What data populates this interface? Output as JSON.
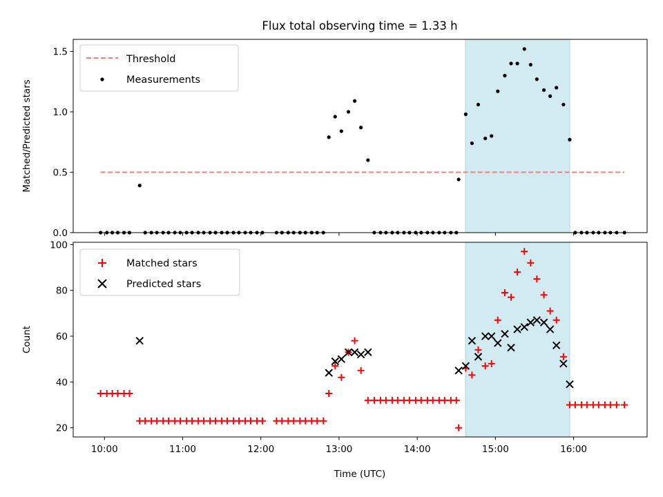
{
  "chart_data": {
    "title": "Flux total observing time = 1.33 h",
    "xlabel": "Time (UTC)",
    "x_ticks": [
      {
        "t": 10.0,
        "label": "10:00"
      },
      {
        "t": 11.0,
        "label": "11:00"
      },
      {
        "t": 12.0,
        "label": "12:00"
      },
      {
        "t": 13.0,
        "label": "13:00"
      },
      {
        "t": 14.0,
        "label": "14:00"
      },
      {
        "t": 15.0,
        "label": "15:00"
      },
      {
        "t": 16.0,
        "label": "16:00"
      }
    ],
    "xlim": [
      9.6,
      16.94
    ],
    "shaded_span": {
      "x_start": 14.617,
      "x_end": 15.95,
      "color": "#add8e6"
    },
    "panels": [
      {
        "id": "ratio",
        "type": "scatter",
        "ylabel": "Matched/Predicted stars",
        "ylim": [
          0,
          1.6
        ],
        "y_ticks": [
          0.0,
          0.5,
          1.0,
          1.5
        ],
        "y_tick_labels": [
          "0.0",
          "0.5",
          "1.0",
          "1.5"
        ],
        "legend_position": "top-left",
        "threshold": {
          "name": "Threshold",
          "value": 0.5,
          "x_start": 9.95,
          "x_end": 16.65,
          "color": "#f08080"
        },
        "series": [
          {
            "name": "Measurements",
            "marker": "dot",
            "color": "#000000",
            "points": [
              [
                9.95,
                0
              ],
              [
                10.03,
                0
              ],
              [
                10.1,
                0
              ],
              [
                10.17,
                0
              ],
              [
                10.25,
                0
              ],
              [
                10.32,
                0
              ],
              [
                10.45,
                0.39
              ],
              [
                10.52,
                0
              ],
              [
                10.6,
                0
              ],
              [
                10.67,
                0
              ],
              [
                10.75,
                0
              ],
              [
                10.82,
                0
              ],
              [
                10.9,
                0
              ],
              [
                10.97,
                0
              ],
              [
                11.05,
                0
              ],
              [
                11.12,
                0
              ],
              [
                11.2,
                0
              ],
              [
                11.27,
                0
              ],
              [
                11.35,
                0
              ],
              [
                11.42,
                0
              ],
              [
                11.5,
                0
              ],
              [
                11.57,
                0
              ],
              [
                11.65,
                0
              ],
              [
                11.72,
                0
              ],
              [
                11.8,
                0
              ],
              [
                11.87,
                0
              ],
              [
                11.95,
                0
              ],
              [
                12.02,
                0
              ],
              [
                12.2,
                0
              ],
              [
                12.27,
                0
              ],
              [
                12.35,
                0
              ],
              [
                12.42,
                0
              ],
              [
                12.5,
                0
              ],
              [
                12.57,
                0
              ],
              [
                12.65,
                0
              ],
              [
                12.72,
                0
              ],
              [
                12.8,
                0
              ],
              [
                12.87,
                0.79
              ],
              [
                12.95,
                0.96
              ],
              [
                13.03,
                0.84
              ],
              [
                13.12,
                1.0
              ],
              [
                13.2,
                1.09
              ],
              [
                13.28,
                0.87
              ],
              [
                13.37,
                0.6
              ],
              [
                13.45,
                0
              ],
              [
                13.53,
                0
              ],
              [
                13.6,
                0
              ],
              [
                13.68,
                0
              ],
              [
                13.75,
                0
              ],
              [
                13.83,
                0
              ],
              [
                13.9,
                0
              ],
              [
                13.98,
                0
              ],
              [
                14.05,
                0
              ],
              [
                14.13,
                0
              ],
              [
                14.2,
                0
              ],
              [
                14.28,
                0
              ],
              [
                14.35,
                0
              ],
              [
                14.43,
                0
              ],
              [
                14.5,
                0
              ],
              [
                14.53,
                0.44
              ],
              [
                14.62,
                0.98
              ],
              [
                14.7,
                0.74
              ],
              [
                14.78,
                1.06
              ],
              [
                14.87,
                0.78
              ],
              [
                14.95,
                0.8
              ],
              [
                15.03,
                1.17
              ],
              [
                15.12,
                1.3
              ],
              [
                15.2,
                1.4
              ],
              [
                15.28,
                1.4
              ],
              [
                15.37,
                1.52
              ],
              [
                15.45,
                1.39
              ],
              [
                15.53,
                1.27
              ],
              [
                15.62,
                1.18
              ],
              [
                15.7,
                1.13
              ],
              [
                15.78,
                1.2
              ],
              [
                15.87,
                1.06
              ],
              [
                15.95,
                0.77
              ],
              [
                16.02,
                0
              ],
              [
                16.1,
                0
              ],
              [
                16.17,
                0
              ],
              [
                16.25,
                0
              ],
              [
                16.32,
                0
              ],
              [
                16.4,
                0
              ],
              [
                16.47,
                0
              ],
              [
                16.55,
                0
              ],
              [
                16.65,
                0
              ]
            ]
          }
        ]
      },
      {
        "id": "counts",
        "type": "scatter",
        "ylabel": "Count",
        "ylim": [
          16,
          101
        ],
        "y_ticks": [
          20,
          40,
          60,
          80,
          100
        ],
        "y_tick_labels": [
          "20",
          "40",
          "60",
          "80",
          "100"
        ],
        "legend_position": "top-left",
        "series": [
          {
            "name": "Matched stars",
            "marker": "plus",
            "color": "#ff0000",
            "points": [
              [
                9.95,
                35
              ],
              [
                10.03,
                35
              ],
              [
                10.1,
                35
              ],
              [
                10.17,
                35
              ],
              [
                10.25,
                35
              ],
              [
                10.32,
                35
              ],
              [
                10.45,
                23
              ],
              [
                10.52,
                23
              ],
              [
                10.6,
                23
              ],
              [
                10.67,
                23
              ],
              [
                10.75,
                23
              ],
              [
                10.82,
                23
              ],
              [
                10.9,
                23
              ],
              [
                10.97,
                23
              ],
              [
                11.05,
                23
              ],
              [
                11.12,
                23
              ],
              [
                11.2,
                23
              ],
              [
                11.27,
                23
              ],
              [
                11.35,
                23
              ],
              [
                11.42,
                23
              ],
              [
                11.5,
                23
              ],
              [
                11.57,
                23
              ],
              [
                11.65,
                23
              ],
              [
                11.72,
                23
              ],
              [
                11.8,
                23
              ],
              [
                11.87,
                23
              ],
              [
                11.95,
                23
              ],
              [
                12.02,
                23
              ],
              [
                12.2,
                23
              ],
              [
                12.27,
                23
              ],
              [
                12.35,
                23
              ],
              [
                12.42,
                23
              ],
              [
                12.5,
                23
              ],
              [
                12.57,
                23
              ],
              [
                12.65,
                23
              ],
              [
                12.72,
                23
              ],
              [
                12.8,
                23
              ],
              [
                12.87,
                35
              ],
              [
                12.95,
                47
              ],
              [
                13.03,
                42
              ],
              [
                13.12,
                53
              ],
              [
                13.2,
                58
              ],
              [
                13.28,
                45
              ],
              [
                13.37,
                32
              ],
              [
                13.45,
                32
              ],
              [
                13.53,
                32
              ],
              [
                13.6,
                32
              ],
              [
                13.68,
                32
              ],
              [
                13.75,
                32
              ],
              [
                13.83,
                32
              ],
              [
                13.9,
                32
              ],
              [
                13.98,
                32
              ],
              [
                14.05,
                32
              ],
              [
                14.13,
                32
              ],
              [
                14.2,
                32
              ],
              [
                14.28,
                32
              ],
              [
                14.35,
                32
              ],
              [
                14.43,
                32
              ],
              [
                14.5,
                32
              ],
              [
                14.53,
                20
              ],
              [
                14.62,
                46
              ],
              [
                14.7,
                43
              ],
              [
                14.78,
                54
              ],
              [
                14.87,
                47
              ],
              [
                14.95,
                48
              ],
              [
                15.03,
                67
              ],
              [
                15.12,
                79
              ],
              [
                15.2,
                77
              ],
              [
                15.28,
                88
              ],
              [
                15.37,
                97
              ],
              [
                15.45,
                92
              ],
              [
                15.53,
                85
              ],
              [
                15.62,
                78
              ],
              [
                15.7,
                71
              ],
              [
                15.78,
                67
              ],
              [
                15.87,
                51
              ],
              [
                15.95,
                30
              ],
              [
                16.02,
                30
              ],
              [
                16.1,
                30
              ],
              [
                16.17,
                30
              ],
              [
                16.25,
                30
              ],
              [
                16.32,
                30
              ],
              [
                16.4,
                30
              ],
              [
                16.47,
                30
              ],
              [
                16.55,
                30
              ],
              [
                16.65,
                30
              ]
            ]
          },
          {
            "name": "Predicted stars",
            "marker": "x",
            "color": "#000000",
            "points": [
              [
                10.45,
                58
              ],
              [
                12.87,
                44
              ],
              [
                12.95,
                49
              ],
              [
                13.03,
                50
              ],
              [
                13.12,
                53
              ],
              [
                13.2,
                53
              ],
              [
                13.28,
                52
              ],
              [
                13.37,
                53
              ],
              [
                14.53,
                45
              ],
              [
                14.62,
                47
              ],
              [
                14.7,
                58
              ],
              [
                14.78,
                51
              ],
              [
                14.87,
                60
              ],
              [
                14.95,
                60
              ],
              [
                15.03,
                57
              ],
              [
                15.12,
                61
              ],
              [
                15.2,
                55
              ],
              [
                15.28,
                63
              ],
              [
                15.37,
                64
              ],
              [
                15.45,
                66
              ],
              [
                15.53,
                67
              ],
              [
                15.62,
                66
              ],
              [
                15.7,
                63
              ],
              [
                15.78,
                56
              ],
              [
                15.87,
                48
              ],
              [
                15.95,
                39
              ]
            ]
          }
        ]
      }
    ]
  }
}
